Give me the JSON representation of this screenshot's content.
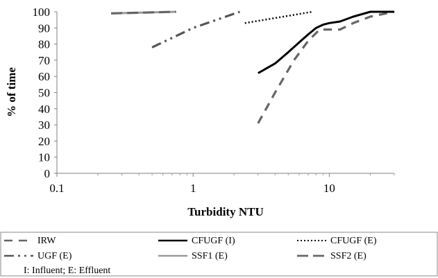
{
  "chart_data": {
    "type": "line",
    "xlabel": "Turbidity NTU",
    "ylabel": "% of time",
    "x_scale": "log",
    "xlim": [
      0.1,
      30
    ],
    "ylim": [
      0,
      100
    ],
    "x_ticks": [
      "0.1",
      "1",
      "10"
    ],
    "y_ticks": [
      "0",
      "10",
      "20",
      "30",
      "40",
      "50",
      "60",
      "70",
      "80",
      "90",
      "100"
    ],
    "grid": false,
    "legend_position": "bottom",
    "legend_note": "I: Influent; E: Effluent",
    "series": [
      {
        "name": "IRW",
        "color": "#666666",
        "dash": "dashed",
        "x": [
          3,
          4,
          5.5,
          7,
          8.5,
          10,
          12,
          15,
          20,
          30
        ],
        "y": [
          31,
          50,
          70,
          82,
          89,
          89,
          89,
          93,
          97,
          100
        ]
      },
      {
        "name": "CFUGF (I)",
        "color": "#000000",
        "dash": "solid",
        "x": [
          3,
          4,
          5,
          6,
          7,
          8,
          9,
          10,
          12,
          15,
          20,
          30
        ],
        "y": [
          62,
          68,
          75,
          81,
          86,
          90,
          92,
          93,
          94,
          97,
          100,
          100
        ]
      },
      {
        "name": "CFUGF (E)",
        "color": "#000000",
        "dash": "dotted",
        "x": [
          2.4,
          7.5
        ],
        "y": [
          93,
          100
        ]
      },
      {
        "name": "UGF (E)",
        "color": "#555555",
        "dash": "dash-dot-dot",
        "x": [
          0.5,
          1,
          2.2
        ],
        "y": [
          78,
          90,
          100
        ]
      },
      {
        "name": "SSF1 (E)",
        "color": "#999999",
        "dash": "solid",
        "x": [
          0.25,
          0.75
        ],
        "y": [
          99,
          100
        ]
      },
      {
        "name": "SSF2 (E)",
        "color": "#666666",
        "dash": "long-dash",
        "x": [
          0.25,
          0.75
        ],
        "y": [
          99,
          100
        ]
      }
    ]
  }
}
